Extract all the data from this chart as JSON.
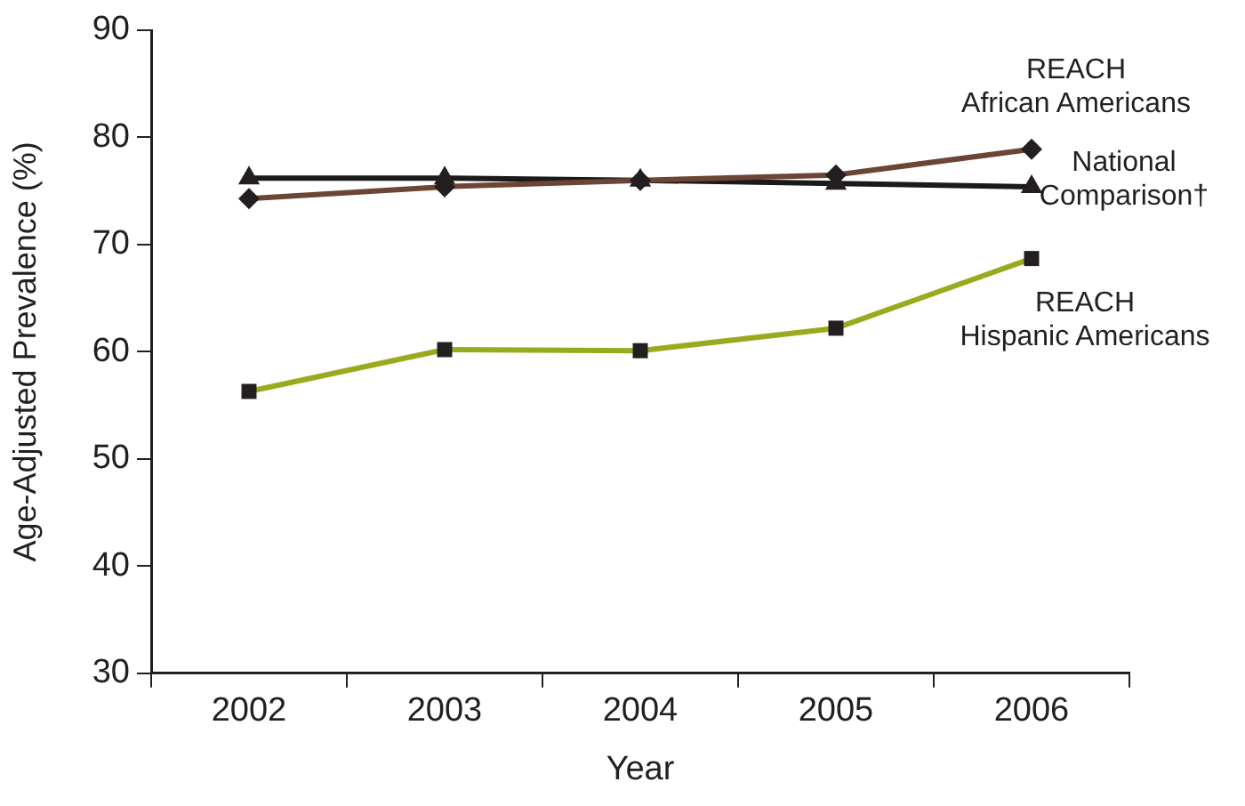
{
  "chart_data": {
    "type": "line",
    "xlabel": "Year",
    "ylabel": "Age-Adjusted Prevalence (%)",
    "categories": [
      "2002",
      "2003",
      "2004",
      "2005",
      "2006"
    ],
    "series": [
      {
        "name": "REACH African Americans",
        "color": "#6b4535",
        "marker": "diamond",
        "values": [
          74.3,
          75.4,
          76.0,
          76.5,
          78.9
        ]
      },
      {
        "name": "National Comparison†",
        "color": "#1a1a1a",
        "marker": "triangle",
        "values": [
          76.2,
          76.2,
          76.0,
          75.7,
          75.4
        ]
      },
      {
        "name": "REACH Hispanic Americans",
        "color": "#9aaa1e",
        "marker": "square",
        "values": [
          56.3,
          60.2,
          60.1,
          62.2,
          68.7
        ]
      }
    ],
    "ylim": [
      30,
      90
    ],
    "yticks": [
      30,
      40,
      50,
      60,
      70,
      80,
      90
    ],
    "grid": false,
    "legend": false,
    "line_style": "solid"
  }
}
